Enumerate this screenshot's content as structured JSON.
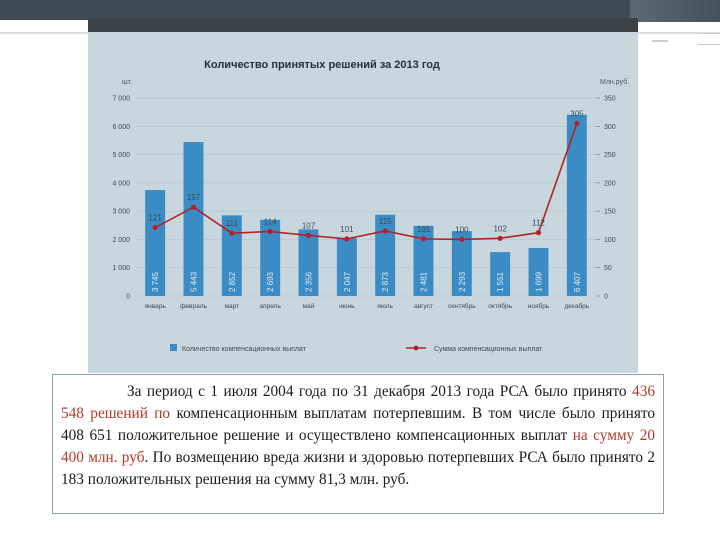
{
  "slide": {
    "caption": {
      "part1": "За период с 1 июля 2004 года по 31 декабря 2013 года РСА было принято ",
      "highlight1": "436 548 решений по",
      "part2": " компенсационным выплатам потерпевшим. В том числе было принято 408 651 положительное решение и осуществлено компенсационных выплат ",
      "highlight2": "на сумму 20 400 млн. руб",
      "part3": ". По возмещению вреда жизни и здоровью потерпевших РСА было принято 2 183 положительных решения на сумму 81,3 млн. руб."
    }
  },
  "colors": {
    "bar": "#3b8cc4",
    "line": "#b0232a",
    "highlight_text": "#b33a2a"
  },
  "chart_data": {
    "type": "bar",
    "title": "Количество принятых решений за 2013 год",
    "y_left_label": "шт.",
    "y_right_label": "Млн.руб.",
    "ylim_left": [
      0,
      7000
    ],
    "ylim_right": [
      0,
      350
    ],
    "y_left_ticks": [
      "0",
      "1 000",
      "2 000",
      "3 000",
      "4 000",
      "5 000",
      "6 000",
      "7 000"
    ],
    "y_right_ticks": [
      "0",
      "50",
      "100",
      "150",
      "200",
      "250",
      "300",
      "350"
    ],
    "categories": [
      "январь",
      "февраль",
      "март",
      "апрель",
      "май",
      "июнь",
      "июль",
      "август",
      "сентябрь",
      "октябрь",
      "ноябрь",
      "декабрь"
    ],
    "series": [
      {
        "name": "Количество компенсационных выплат",
        "kind": "bar",
        "axis": "left",
        "values": [
          3745,
          5443,
          2852,
          2693,
          2356,
          2047,
          2873,
          2481,
          2293,
          1551,
          1699,
          6407
        ],
        "labels": [
          "3 745",
          "5 443",
          "2 852",
          "2 693",
          "2 356",
          "2 047",
          "2 873",
          "2 481",
          "2 293",
          "1 551",
          "1 699",
          "6 407"
        ]
      },
      {
        "name": "Сумма компенсационных выплат",
        "kind": "line",
        "axis": "right",
        "values": [
          121,
          157,
          111,
          114,
          107,
          101,
          115,
          101,
          100,
          102,
          112,
          305
        ],
        "labels": [
          "121",
          "157",
          "111",
          "114",
          "107",
          "101",
          "115",
          "101",
          "100",
          "102",
          "112",
          "305"
        ]
      }
    ],
    "legend_position": "bottom"
  }
}
